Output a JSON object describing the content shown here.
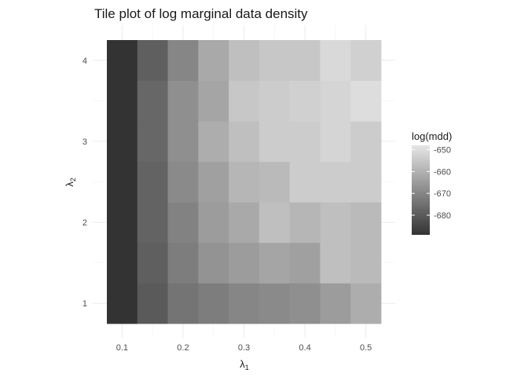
{
  "chart_data": {
    "type": "heatmap",
    "title": "Tile plot of log marginal data density",
    "xlabel": {
      "symbol": "λ",
      "subscript": "1"
    },
    "ylabel": {
      "symbol": "λ",
      "subscript": "2"
    },
    "x_ticks": [
      "0.1",
      "0.2",
      "0.3",
      "0.4",
      "0.5"
    ],
    "y_ticks": [
      "1",
      "2",
      "3",
      "4"
    ],
    "x_values": [
      0.1,
      0.15,
      0.2,
      0.25,
      0.3,
      0.35,
      0.4,
      0.45,
      0.5
    ],
    "y_values": [
      1,
      1.5,
      2,
      2.5,
      3,
      3.5,
      4
    ],
    "xlim": [
      0.075,
      0.525
    ],
    "ylim": [
      0.75,
      4.25
    ],
    "z": [
      [
        -689,
        -680,
        -674,
        -672,
        -670,
        -669,
        -668,
        -665,
        -661
      ],
      [
        -689,
        -679,
        -672,
        -667,
        -665,
        -663,
        -664,
        -657,
        -658
      ],
      [
        -689,
        -678,
        -671,
        -665,
        -662,
        -657,
        -659,
        -657,
        -658
      ],
      [
        -689,
        -678,
        -669,
        -664,
        -659,
        -658,
        -654,
        -654,
        -654
      ],
      [
        -689,
        -677,
        -668,
        -661,
        -657,
        -654,
        -654,
        -652,
        -654
      ],
      [
        -689,
        -677,
        -668,
        -663,
        -655,
        -654,
        -653,
        -652,
        -650
      ],
      [
        -689,
        -679,
        -670,
        -662,
        -657,
        -655,
        -655,
        -651,
        -653
      ]
    ],
    "legend": {
      "title": "log(mdd)",
      "ticks": [
        -650,
        -660,
        -670,
        -680
      ],
      "tick_labels": [
        "-650",
        "-660",
        "-670",
        "-680"
      ],
      "range": [
        -689,
        -648
      ],
      "low_color": "#333333",
      "high_color": "#e6e6e6",
      "position": "right"
    }
  }
}
